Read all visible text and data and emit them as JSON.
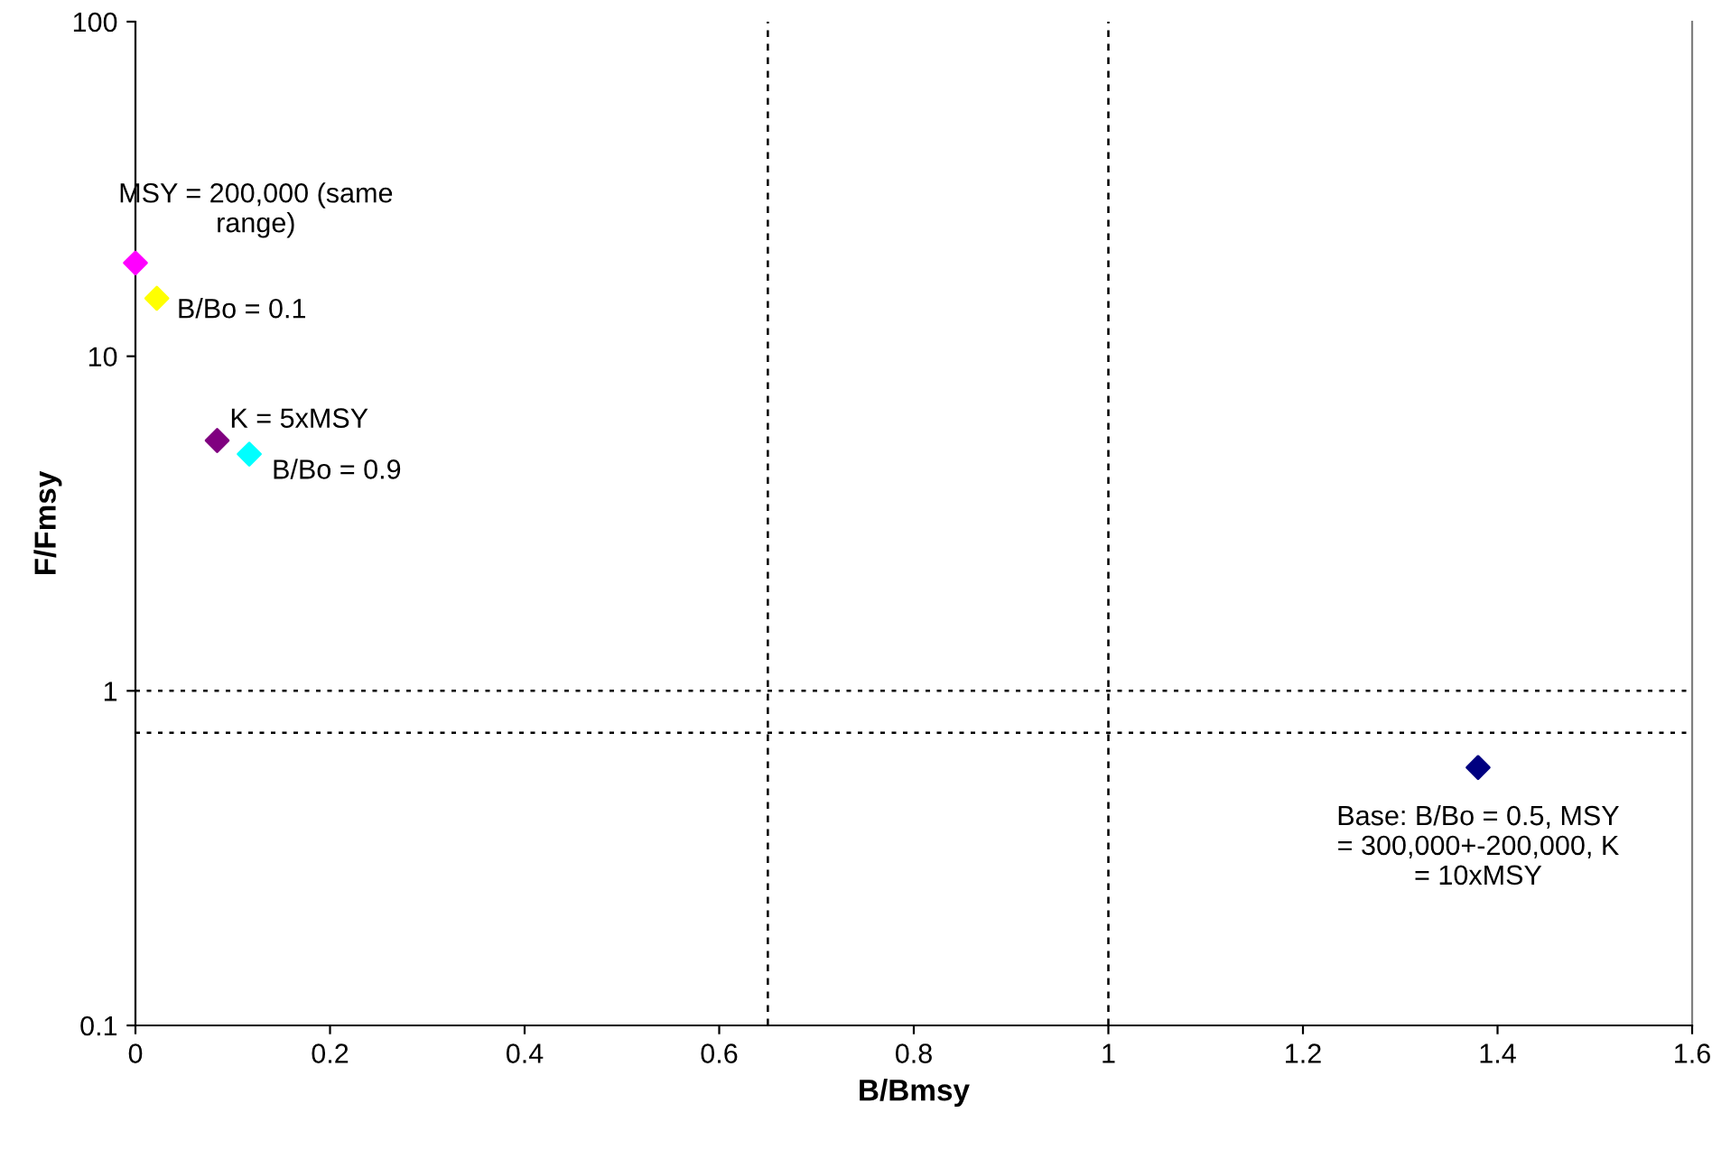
{
  "chart_data": {
    "type": "scatter",
    "xlabel": "B/Bmsy",
    "ylabel": "F/Fmsy",
    "log": "y",
    "marker": "diamond",
    "grid": false,
    "legend": false,
    "xlim": [
      0,
      1.6
    ],
    "xticks": [
      0,
      0.2,
      0.4,
      0.6,
      0.8,
      1,
      1.2,
      1.4,
      1.6
    ],
    "ylim": [
      0.1,
      100
    ],
    "yticks": [
      0.1,
      1,
      10,
      100
    ],
    "series": [
      {
        "name": "MSY = 200,000 (same range)",
        "color": "#ff00ff",
        "x": [
          0
        ],
        "values": [
          19
        ]
      },
      {
        "name": "B/Bo = 0.1",
        "color": "#ffff00",
        "x": [
          0.022
        ],
        "values": [
          14.9
        ]
      },
      {
        "name": "K = 5xMSY",
        "color": "#800080",
        "x": [
          0.084
        ],
        "values": [
          5.6
        ]
      },
      {
        "name": "B/Bo = 0.9",
        "color": "#00ffff",
        "x": [
          0.117
        ],
        "values": [
          5.1
        ]
      },
      {
        "name": "Base: B/Bo = 0.5, MSY = 300,000+-200,000, K = 10xMSY",
        "color": "#000080",
        "x": [
          1.38
        ],
        "values": [
          0.59
        ]
      }
    ],
    "ref_lines": [
      {
        "axis": "x",
        "value": 0.65,
        "label": null,
        "color": "#000000",
        "line_style": "dashed"
      },
      {
        "axis": "x",
        "value": 1,
        "label": null,
        "color": "#000000",
        "line_style": "dashed"
      },
      {
        "axis": "y",
        "value": 1,
        "label": null,
        "color": "#000000",
        "line_style": "dotted"
      },
      {
        "axis": "y",
        "value": 0.75,
        "label": null,
        "color": "#000000",
        "line_style": "dotted"
      }
    ]
  }
}
